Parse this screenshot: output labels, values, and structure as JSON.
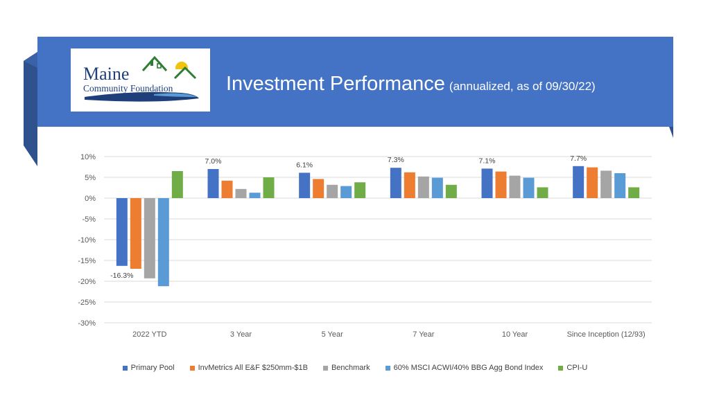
{
  "header": {
    "title": "Investment Performance",
    "subtitle": "(annualized, as of 09/30/22)",
    "banner_color": "#4472c4",
    "fold_color": "#2f528f"
  },
  "logo": {
    "line1": "Maine",
    "line2": "Community Foundation",
    "text_color": "#1f3f7a",
    "house_color": "#2e7d32",
    "sun_color": "#f2c40f"
  },
  "chart_data": {
    "type": "bar",
    "title": "",
    "xlabel": "",
    "ylabel": "",
    "ylim": [
      -30,
      10
    ],
    "yticks": [
      10,
      5,
      0,
      -5,
      -10,
      -15,
      -20,
      -25,
      -30
    ],
    "ytick_labels": [
      "10%",
      "5%",
      "0%",
      "-5%",
      "-10%",
      "-15%",
      "-20%",
      "-25%",
      "-30%"
    ],
    "grid": true,
    "legend_position": "bottom",
    "categories": [
      "2022 YTD",
      "3 Year",
      "5 Year",
      "7 Year",
      "10 Year",
      "Since Inception (12/93)"
    ],
    "series": [
      {
        "name": "Primary Pool",
        "color": "#4472c4",
        "values": [
          -16.3,
          7.0,
          6.1,
          7.3,
          7.1,
          7.7
        ]
      },
      {
        "name": "InvMetrics All E&F $250mm-$1B",
        "color": "#ed7d31",
        "values": [
          -17.0,
          4.2,
          4.6,
          6.2,
          6.4,
          7.4
        ]
      },
      {
        "name": "Benchmark",
        "color": "#a5a5a5",
        "values": [
          -19.3,
          2.2,
          3.2,
          5.2,
          5.4,
          6.6
        ]
      },
      {
        "name": "60% MSCI ACWI/40% BBG Agg Bond Index",
        "color": "#5b9bd5",
        "values": [
          -21.2,
          1.3,
          2.9,
          4.9,
          4.9,
          6.0
        ]
      },
      {
        "name": "CPI-U",
        "color": "#70ad47",
        "values": [
          6.5,
          5.0,
          3.8,
          3.2,
          2.6,
          2.6
        ]
      }
    ],
    "data_labels": [
      {
        "series": 0,
        "index": 0,
        "text": "-16.3%"
      },
      {
        "series": 0,
        "index": 1,
        "text": "7.0%"
      },
      {
        "series": 0,
        "index": 2,
        "text": "6.1%"
      },
      {
        "series": 0,
        "index": 3,
        "text": "7.3%"
      },
      {
        "series": 0,
        "index": 4,
        "text": "7.1%"
      },
      {
        "series": 0,
        "index": 5,
        "text": "7.7%"
      }
    ]
  }
}
